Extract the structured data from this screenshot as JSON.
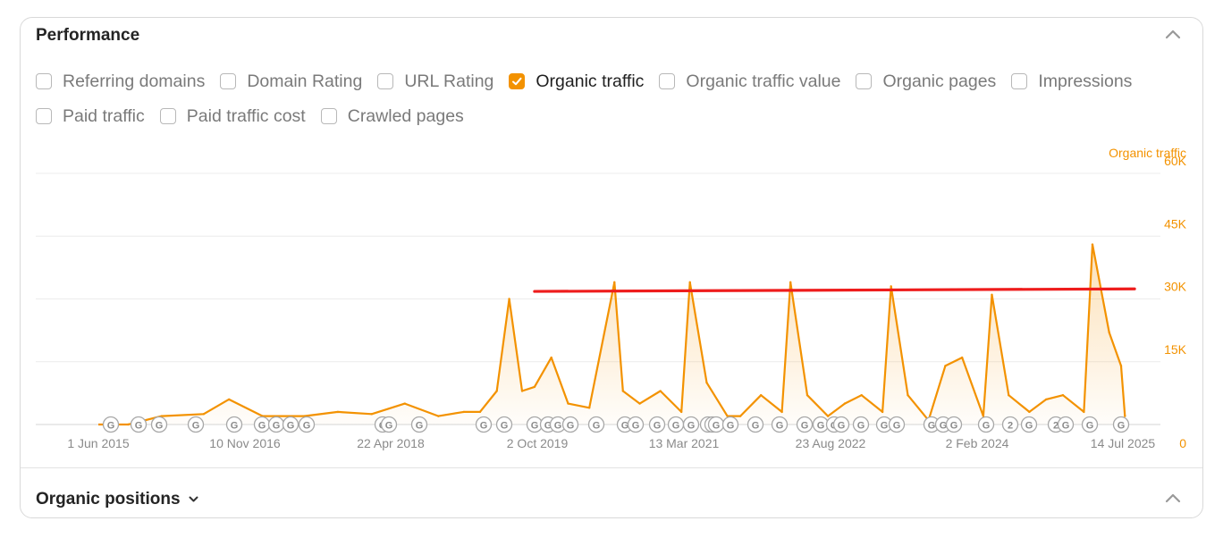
{
  "performance": {
    "title": "Performance",
    "metrics_row1": [
      {
        "label": "Referring domains",
        "checked": false
      },
      {
        "label": "Domain Rating",
        "checked": false
      },
      {
        "label": "URL Rating",
        "checked": false
      },
      {
        "label": "Organic traffic",
        "checked": true
      },
      {
        "label": "Organic traffic value",
        "checked": false
      },
      {
        "label": "Organic pages",
        "checked": false
      },
      {
        "label": "Impressions",
        "checked": false
      }
    ],
    "metrics_row2": [
      {
        "label": "Paid traffic",
        "checked": false
      },
      {
        "label": "Paid traffic cost",
        "checked": false
      },
      {
        "label": "Crawled pages",
        "checked": false
      }
    ]
  },
  "chart_data": {
    "type": "line",
    "series": [
      {
        "name": "Organic traffic",
        "color": "#f39200",
        "x": [
          "2015-09-01",
          "2016-01-01",
          "2016-06-01",
          "2016-09-01",
          "2017-01-01",
          "2017-06-01",
          "2017-10-01",
          "2018-02-01",
          "2018-06-01",
          "2018-10-01",
          "2019-01-01",
          "2019-03-01",
          "2019-05-01",
          "2019-06-15",
          "2019-08-01",
          "2019-09-15",
          "2019-11-15",
          "2020-01-15",
          "2020-04-01",
          "2020-07-01",
          "2020-08-01",
          "2020-10-01",
          "2020-12-15",
          "2021-03-01",
          "2021-04-01",
          "2021-06-01",
          "2021-08-15",
          "2021-10-01",
          "2021-12-15",
          "2022-03-01",
          "2022-04-01",
          "2022-06-01",
          "2022-08-15",
          "2022-10-15",
          "2022-12-15",
          "2023-03-01",
          "2023-04-01",
          "2023-06-01",
          "2023-08-15",
          "2023-10-15",
          "2023-12-15",
          "2024-03-01",
          "2024-04-01",
          "2024-06-01",
          "2024-08-15",
          "2024-10-15",
          "2024-12-15",
          "2025-03-01",
          "2025-04-01",
          "2025-06-01",
          "2025-07-14",
          "2025-07-28"
        ],
        "values": [
          0,
          2000,
          2500,
          6000,
          2000,
          2000,
          3000,
          2500,
          5000,
          2000,
          3000,
          3000,
          8000,
          30000,
          8000,
          9000,
          16000,
          5000,
          4000,
          34000,
          8000,
          5000,
          8000,
          3000,
          34000,
          10000,
          2000,
          2000,
          7000,
          3000,
          34000,
          7000,
          2000,
          5000,
          7000,
          3000,
          33000,
          7000,
          1000,
          14000,
          16000,
          2000,
          31000,
          7000,
          3000,
          6000,
          7000,
          3000,
          43000,
          22000,
          14000,
          2000
        ]
      }
    ],
    "x_tick_labels": [
      "1 Jun 2015",
      "10 Nov 2016",
      "22 Apr 2018",
      "2 Oct 2019",
      "13 Mar 2021",
      "23 Aug 2022",
      "2 Feb 2024",
      "14 Jul 2025"
    ],
    "y_tick_labels": [
      "60K",
      "45K",
      "30K",
      "15K",
      "0"
    ],
    "ylim": [
      0,
      60000
    ],
    "y_axis_title": "Organic traffic",
    "annotation_line": {
      "x_start": "2019-09-15",
      "x_end": "2025-09-01",
      "y_start": 31800,
      "y_end": 32400,
      "color": "#ee1c1c"
    },
    "markers": [
      "G",
      "G",
      "G",
      "G",
      "G",
      "G",
      "G",
      "G",
      "G",
      "G",
      "G",
      "G",
      "G",
      "G",
      "G",
      "G",
      "G",
      "G",
      "G",
      "G",
      "G",
      "G",
      "G",
      "G",
      "G",
      "G",
      "G",
      "G",
      "G",
      "G",
      "G",
      "G",
      "G",
      "G",
      "G",
      "G",
      "G",
      "G",
      "G",
      "G",
      "G",
      "2",
      "G",
      "2",
      "G",
      "G",
      "G",
      "G",
      "G"
    ],
    "grid": true
  },
  "organic_positions": {
    "title": "Organic positions"
  }
}
